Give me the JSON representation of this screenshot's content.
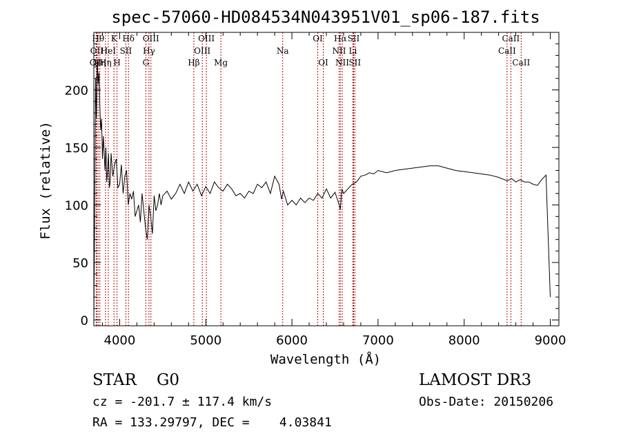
{
  "chart_data": {
    "type": "line",
    "title": "spec-57060-HD084534N043951V01_sp06-187.fits",
    "xlabel": "Wavelength (Å)",
    "ylabel": "Flux (relative)",
    "xlim": [
      3700,
      9100
    ],
    "ylim": [
      -5,
      250
    ],
    "xticks": [
      4000,
      5000,
      6000,
      7000,
      8000,
      9000
    ],
    "yticks": [
      0,
      50,
      100,
      150,
      200
    ],
    "grid": false,
    "series": [
      {
        "x": [
          3700,
          3710,
          3720,
          3730,
          3740,
          3750,
          3760,
          3770,
          3780,
          3790,
          3800,
          3810,
          3820,
          3830,
          3840,
          3850,
          3860,
          3870,
          3880,
          3890,
          3900,
          3920,
          3940,
          3960,
          3980,
          4000,
          4020,
          4040,
          4060,
          4080,
          4100,
          4120,
          4140,
          4160,
          4180,
          4200,
          4220,
          4240,
          4260,
          4280,
          4300,
          4320,
          4340,
          4360,
          4380,
          4400,
          4420,
          4440,
          4460,
          4480,
          4500,
          4550,
          4600,
          4650,
          4700,
          4750,
          4800,
          4850,
          4900,
          4950,
          5000,
          5050,
          5100,
          5150,
          5200,
          5250,
          5300,
          5350,
          5400,
          5450,
          5500,
          5550,
          5600,
          5650,
          5700,
          5750,
          5800,
          5850,
          5880,
          5900,
          5950,
          6000,
          6050,
          6100,
          6150,
          6200,
          6250,
          6300,
          6350,
          6400,
          6450,
          6500,
          6550,
          6562,
          6580,
          6600,
          6650,
          6700,
          6750,
          6800,
          6850,
          6900,
          6950,
          7000,
          7100,
          7200,
          7300,
          7400,
          7500,
          7600,
          7700,
          7800,
          7900,
          8000,
          8100,
          8200,
          8300,
          8400,
          8500,
          8550,
          8600,
          8650,
          8700,
          8750,
          8800,
          8850,
          8900,
          8950,
          9000
        ],
        "y": [
          0,
          95,
          210,
          175,
          225,
          205,
          215,
          185,
          165,
          175,
          140,
          160,
          145,
          130,
          150,
          120,
          130,
          145,
          115,
          120,
          145,
          125,
          135,
          140,
          115,
          118,
          135,
          110,
          125,
          130,
          100,
          110,
          105,
          112,
          90,
          95,
          100,
          85,
          110,
          95,
          80,
          70,
          100,
          90,
          75,
          108,
          95,
          100,
          110,
          100,
          108,
          112,
          105,
          110,
          118,
          110,
          120,
          112,
          118,
          108,
          116,
          110,
          120,
          115,
          112,
          118,
          114,
          108,
          110,
          106,
          112,
          110,
          118,
          115,
          120,
          110,
          125,
          118,
          105,
          112,
          100,
          104,
          100,
          106,
          102,
          106,
          104,
          110,
          106,
          114,
          106,
          111,
          100,
          96,
          114,
          110,
          114,
          118,
          120,
          125,
          126,
          128,
          127,
          130,
          128,
          130,
          131,
          132,
          133,
          134,
          134,
          132,
          130,
          129,
          128,
          127,
          126,
          124,
          121,
          123,
          120,
          122,
          120,
          120,
          118,
          117,
          122,
          126,
          20
        ]
      }
    ],
    "lines": [
      {
        "wl": 3727,
        "label": "OII",
        "row": 3
      },
      {
        "wl": 3734,
        "label": "OII",
        "row": 2
      },
      {
        "wl": 3750,
        "label": "Hθ",
        "row": 1
      },
      {
        "wl": 3770,
        "label": "Hη",
        "row": 3
      },
      {
        "wl": 3835,
        "label": "Hη",
        "row": 3
      },
      {
        "wl": 3868,
        "label": "HeI",
        "row": 2
      },
      {
        "wl": 3934,
        "label": "K",
        "row": 1
      },
      {
        "wl": 3969,
        "label": "H",
        "row": 3
      },
      {
        "wl": 4072,
        "label": "SII",
        "row": 2
      },
      {
        "wl": 4102,
        "label": "Hδ",
        "row": 1
      },
      {
        "wl": 4304,
        "label": "G",
        "row": 3
      },
      {
        "wl": 4340,
        "label": "Hγ",
        "row": 2
      },
      {
        "wl": 4363,
        "label": "OIII",
        "row": 1
      },
      {
        "wl": 4861,
        "label": "Hβ",
        "row": 3
      },
      {
        "wl": 4959,
        "label": "OIII",
        "row": 2
      },
      {
        "wl": 5007,
        "label": "OIII",
        "row": 1
      },
      {
        "wl": 5175,
        "label": "Mg",
        "row": 3
      },
      {
        "wl": 5893,
        "label": "Na",
        "row": 2
      },
      {
        "wl": 6300,
        "label": "OI",
        "row": 1
      },
      {
        "wl": 6364,
        "label": "OI",
        "row": 3
      },
      {
        "wl": 6548,
        "label": "NII",
        "row": 2
      },
      {
        "wl": 6563,
        "label": "Hα",
        "row": 1
      },
      {
        "wl": 6584,
        "label": "NII",
        "row": 3
      },
      {
        "wl": 6708,
        "label": "Li",
        "row": 2
      },
      {
        "wl": 6716,
        "label": "SII",
        "row": 1
      },
      {
        "wl": 6731,
        "label": "SII",
        "row": 3
      },
      {
        "wl": 8498,
        "label": "CaII",
        "row": 2
      },
      {
        "wl": 8542,
        "label": "CaII",
        "row": 1
      },
      {
        "wl": 8662,
        "label": "CaII",
        "row": 3
      }
    ]
  },
  "info": {
    "class": "STAR    G0",
    "survey": "LAMOST DR3",
    "cz": "cz = -201.7 ± 117.4 km/s",
    "obsdate": "Obs-Date: 20150206",
    "radec": "RA = 133.29797, DEC =    4.03841"
  },
  "colors": {
    "line_marker": "#b30000",
    "spectrum": "#000000"
  }
}
